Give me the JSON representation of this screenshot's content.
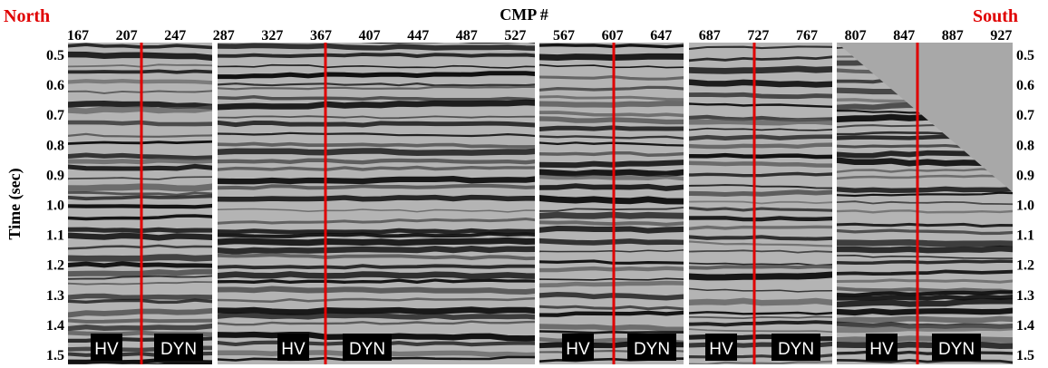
{
  "header": {
    "left_label": "North",
    "right_label": "South",
    "x_axis_title": "CMP #"
  },
  "x_ticks": [
    "167",
    "207",
    "247",
    "287",
    "327",
    "367",
    "407",
    "447",
    "487",
    "527",
    "567",
    "607",
    "647",
    "687",
    "727",
    "767",
    "807",
    "847",
    "887",
    "927"
  ],
  "y_axis_title": "Time (sec)",
  "y_ticks": [
    "0.5",
    "0.6",
    "0.7",
    "0.8",
    "0.9",
    "1.0",
    "1.1",
    "1.2",
    "1.3",
    "1.4",
    "1.5"
  ],
  "panels": [
    {
      "left_label": "HV",
      "right_label": "DYN"
    },
    {
      "left_label": "HV",
      "right_label": "DYN"
    },
    {
      "left_label": "HV",
      "right_label": "DYN"
    },
    {
      "left_label": "HV",
      "right_label": "DYN"
    },
    {
      "left_label": "HV",
      "right_label": "DYN"
    }
  ]
}
